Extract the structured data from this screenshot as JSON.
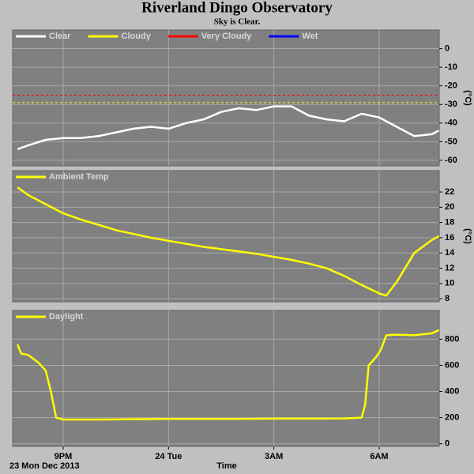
{
  "title": "Riverland Dingo Observatory",
  "subtitle": "Sky is Clear.",
  "x_axis": {
    "label": "Time",
    "date": "23 Mon Dec 2013",
    "xlim": [
      19.56,
      31.71
    ],
    "xticks": [
      {
        "value": 21,
        "label": "9PM"
      },
      {
        "value": 24,
        "label": "24 Tue"
      },
      {
        "value": 27,
        "label": "3AM"
      },
      {
        "value": 30,
        "label": "6AM"
      }
    ]
  },
  "chart_data": [
    {
      "type": "line",
      "ylabel": "(°C)",
      "ylim": [
        -63,
        10
      ],
      "yticks": [
        0,
        -10,
        -20,
        -30,
        -40,
        -50,
        -60
      ],
      "grid": true,
      "x": [
        19.7,
        20,
        20.5,
        21,
        21.5,
        22,
        22.5,
        23,
        23.5,
        24,
        24.5,
        25,
        25.5,
        26,
        26.5,
        27,
        27.5,
        28,
        28.5,
        29,
        29.5,
        30,
        30.5,
        31,
        31.5,
        31.7
      ],
      "series": [
        {
          "name": "Clear",
          "color": "#ffffff",
          "values": [
            -54,
            -52,
            -49,
            -48,
            -48,
            -47,
            -45,
            -43,
            -42,
            -43,
            -40,
            -38,
            -34,
            -32,
            -33,
            -31,
            -31,
            -36,
            -38,
            -39,
            -35,
            -37,
            -42,
            -47,
            -46,
            -44
          ]
        },
        {
          "name": "Cloudy",
          "color": "#ffff00",
          "threshold": -29
        },
        {
          "name": "Very Cloudy",
          "color": "#ff0000",
          "threshold": -25
        },
        {
          "name": "Wet",
          "color": "#0000ff"
        }
      ]
    },
    {
      "type": "line",
      "ylabel": "(°C)",
      "ylim": [
        7.6,
        24.8
      ],
      "yticks": [
        8,
        10,
        12,
        14,
        16,
        18,
        20,
        22
      ],
      "grid": true,
      "x": [
        19.7,
        20,
        20.5,
        21,
        21.5,
        22,
        22.5,
        23,
        23.5,
        24,
        24.5,
        25,
        25.5,
        26,
        26.5,
        27,
        27.5,
        28,
        28.5,
        29,
        29.5,
        30,
        30.2,
        30.5,
        31,
        31.5,
        31.7
      ],
      "series": [
        {
          "name": "Ambient Temp",
          "color": "#ffff00",
          "values": [
            22.6,
            21.6,
            20.4,
            19.2,
            18.4,
            17.7,
            17.0,
            16.5,
            16.0,
            15.6,
            15.2,
            14.8,
            14.5,
            14.2,
            13.9,
            13.5,
            13.1,
            12.6,
            12.0,
            11.0,
            9.8,
            8.7,
            8.4,
            10.2,
            14.0,
            15.7,
            16.2
          ]
        }
      ]
    },
    {
      "type": "line",
      "ylim": [
        -20,
        1020
      ],
      "yticks": [
        0,
        200,
        400,
        600,
        800
      ],
      "grid": true,
      "x": [
        19.7,
        19.8,
        20,
        20.3,
        20.5,
        20.65,
        20.8,
        21,
        22,
        23,
        24,
        25,
        26,
        27,
        28,
        29,
        29.5,
        29.6,
        29.7,
        29.9,
        30.05,
        30.2,
        30.5,
        31,
        31.5,
        31.7
      ],
      "series": [
        {
          "name": "Daylight",
          "color": "#ffff00",
          "values": [
            760,
            690,
            680,
            620,
            560,
            400,
            200,
            185,
            185,
            188,
            190,
            190,
            190,
            192,
            192,
            193,
            200,
            300,
            600,
            660,
            720,
            830,
            835,
            830,
            845,
            870
          ]
        }
      ]
    }
  ]
}
